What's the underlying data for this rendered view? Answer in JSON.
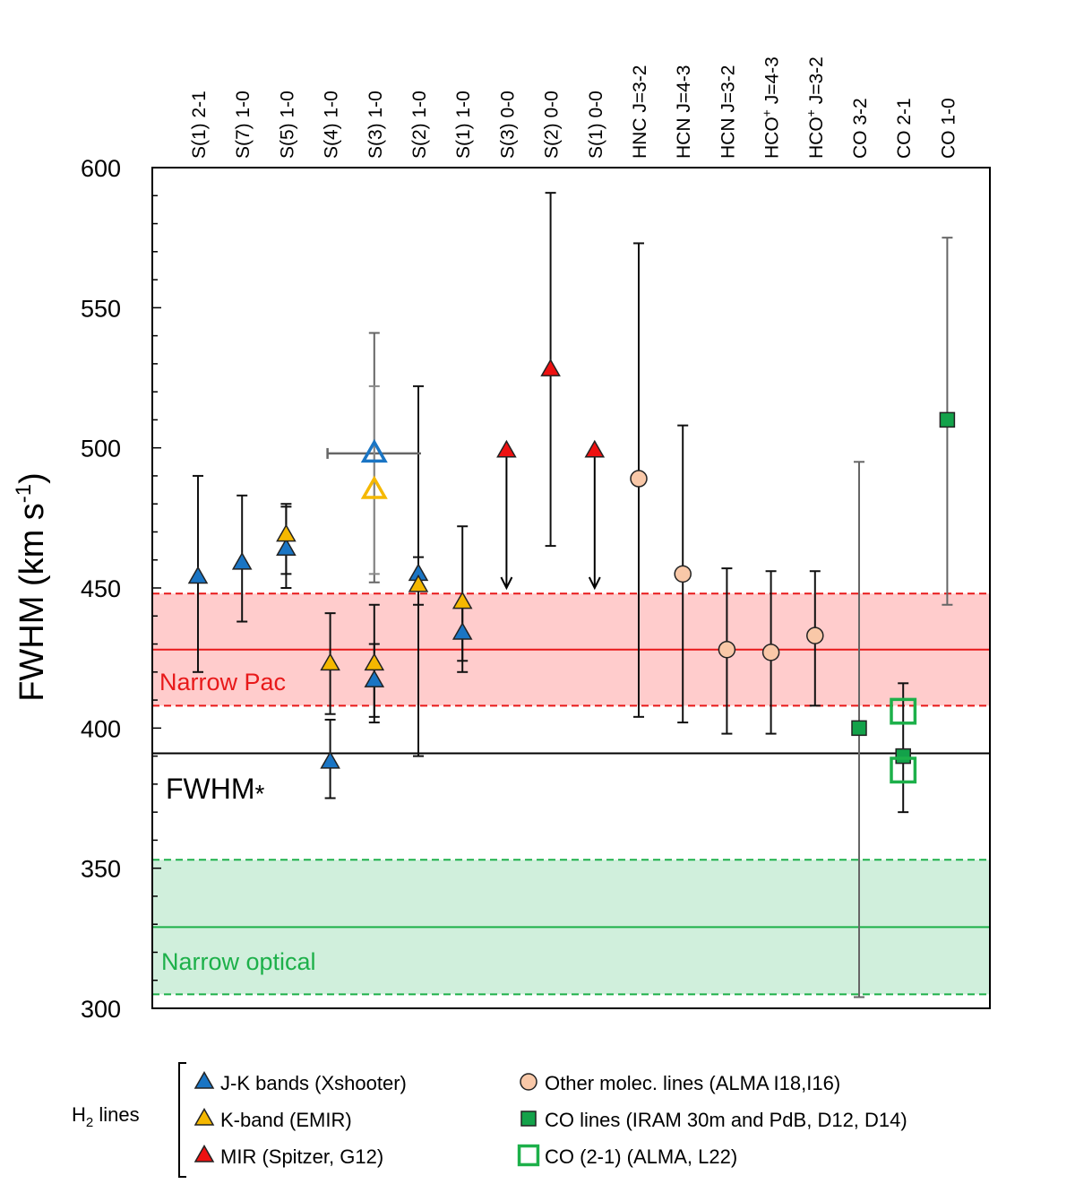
{
  "chart_data": {
    "type": "scatter",
    "ylabel": "FWHM (km s",
    "ylabel_sup": "-1",
    "ylabel_end": ")",
    "ylim": [
      300,
      600
    ],
    "yticks": [
      300,
      350,
      400,
      450,
      500,
      550,
      600
    ],
    "categories": [
      "S(1) 2-1",
      "S(7) 1-0",
      "S(5) 1-0",
      "S(4) 1-0",
      "S(3) 1-0",
      "S(2) 1-0",
      "S(1) 1-0",
      "S(3) 0-0",
      "S(2) 0-0",
      "S(1) 0-0",
      "HNC J=3-2",
      "HCN J=4-3",
      "HCN J=3-2",
      "HCO+ J=4-3",
      "HCO+ J=3-2",
      "CO 3-2",
      "CO 2-1",
      "CO 1-0"
    ],
    "category_sup": [
      "",
      "",
      "",
      "",
      "",
      "",
      "",
      "",
      "",
      "",
      "",
      "",
      "",
      "+",
      "+",
      "",
      "",
      ""
    ],
    "bands": [
      {
        "name": "Narrow Paα",
        "label": "Narrow Pac",
        "center": 428,
        "low": 408,
        "high": 448,
        "color": "#e8191a",
        "fill": "#ffcccc"
      },
      {
        "name": "Narrow optical",
        "label": "Narrow optical",
        "center": 329,
        "low": 305,
        "high": 353,
        "color": "#1db04a",
        "fill": "#d0efdc"
      }
    ],
    "reference_line": {
      "name": "FWHM*",
      "label": "FWHM",
      "symbol": "*",
      "value": 391,
      "color": "#000000"
    },
    "series": [
      {
        "name": "J-K bands (Xshooter)",
        "marker": "triangle",
        "color": "#1a75c4",
        "filled": true,
        "points": [
          {
            "x": 0,
            "y": 454,
            "lo": 420,
            "hi": 490
          },
          {
            "x": 1,
            "y": 459,
            "lo": 438,
            "hi": 483
          },
          {
            "x": 2,
            "y": 464,
            "lo": 450,
            "hi": 480
          },
          {
            "x": 3,
            "y": 388,
            "lo": 375,
            "hi": 403
          },
          {
            "x": 4,
            "y": 417,
            "lo": 404,
            "hi": 430
          },
          {
            "x": 5,
            "y": 455,
            "lo": 444,
            "hi": 461
          },
          {
            "x": 6,
            "y": 434,
            "lo": 424,
            "hi": 443
          }
        ]
      },
      {
        "name": "K-band (EMIR)",
        "marker": "triangle",
        "color": "#f5b800",
        "filled": true,
        "points": [
          {
            "x": 2,
            "y": 469,
            "lo": 455,
            "hi": 479
          },
          {
            "x": 3,
            "y": 423,
            "lo": 405,
            "hi": 441
          },
          {
            "x": 4,
            "y": 423,
            "lo": 402,
            "hi": 444
          },
          {
            "x": 5,
            "y": 451,
            "lo": 390,
            "hi": 522
          },
          {
            "x": 6,
            "y": 445,
            "lo": 420,
            "hi": 472
          }
        ]
      },
      {
        "name": "MIR (Spitzer, G12)",
        "marker": "triangle",
        "color": "#ee1111",
        "filled": true,
        "points": [
          {
            "x": 7,
            "y": 499,
            "upper_limit": true,
            "arrow_to": 450
          },
          {
            "x": 8,
            "y": 528,
            "lo": 465,
            "hi": 591
          },
          {
            "x": 9,
            "y": 499,
            "upper_limit": true,
            "arrow_to": 450
          }
        ]
      },
      {
        "name": "Other molec. lines (ALMA I18,I16)",
        "marker": "circle",
        "color": "#f9c8a8",
        "filled": true,
        "points": [
          {
            "x": 10,
            "y": 489,
            "lo": 404,
            "hi": 573
          },
          {
            "x": 11,
            "y": 455,
            "lo": 402,
            "hi": 508
          },
          {
            "x": 12,
            "y": 428,
            "lo": 398,
            "hi": 457
          },
          {
            "x": 13,
            "y": 427,
            "lo": 398,
            "hi": 456
          },
          {
            "x": 14,
            "y": 433,
            "lo": 408,
            "hi": 456
          }
        ]
      },
      {
        "name": "CO lines (IRAM 30m and PdB, D12, D14)",
        "marker": "square",
        "color": "#13a24a",
        "filled": true,
        "points": [
          {
            "x": 15,
            "y": 400,
            "lo": 304,
            "hi": 495,
            "err_color": "#666666"
          },
          {
            "x": 16,
            "y": 390,
            "lo": 370,
            "hi": 416
          },
          {
            "x": 17,
            "y": 510,
            "lo": 444,
            "hi": 575,
            "err_color": "#666666"
          }
        ]
      },
      {
        "name": "CO (2-1) (ALMA, L22)",
        "marker": "square",
        "color": "#1db04a",
        "filled": false,
        "points": [
          {
            "x": 16,
            "y": 406
          },
          {
            "x": 16,
            "y": 385
          }
        ]
      },
      {
        "name": "Xshooter S(3) 1-0 (open)",
        "marker": "triangle",
        "color": "#1a75c4",
        "filled": false,
        "legend": false,
        "points": [
          {
            "x": 4,
            "y": 498,
            "lo": 452,
            "hi": 541,
            "xlo": 3,
            "xhi": 5,
            "err_color": "#666666"
          }
        ]
      },
      {
        "name": "EMIR S(3) 1-0 (open)",
        "marker": "triangle",
        "color": "#f5b800",
        "filled": false,
        "legend": false,
        "points": [
          {
            "x": 4,
            "y": 485,
            "lo": 455,
            "hi": 522,
            "err_color": "#888888"
          }
        ]
      }
    ],
    "legend": {
      "group_label": "H",
      "group_sub": "2",
      "group_end": " lines",
      "placement": "bottom"
    }
  }
}
